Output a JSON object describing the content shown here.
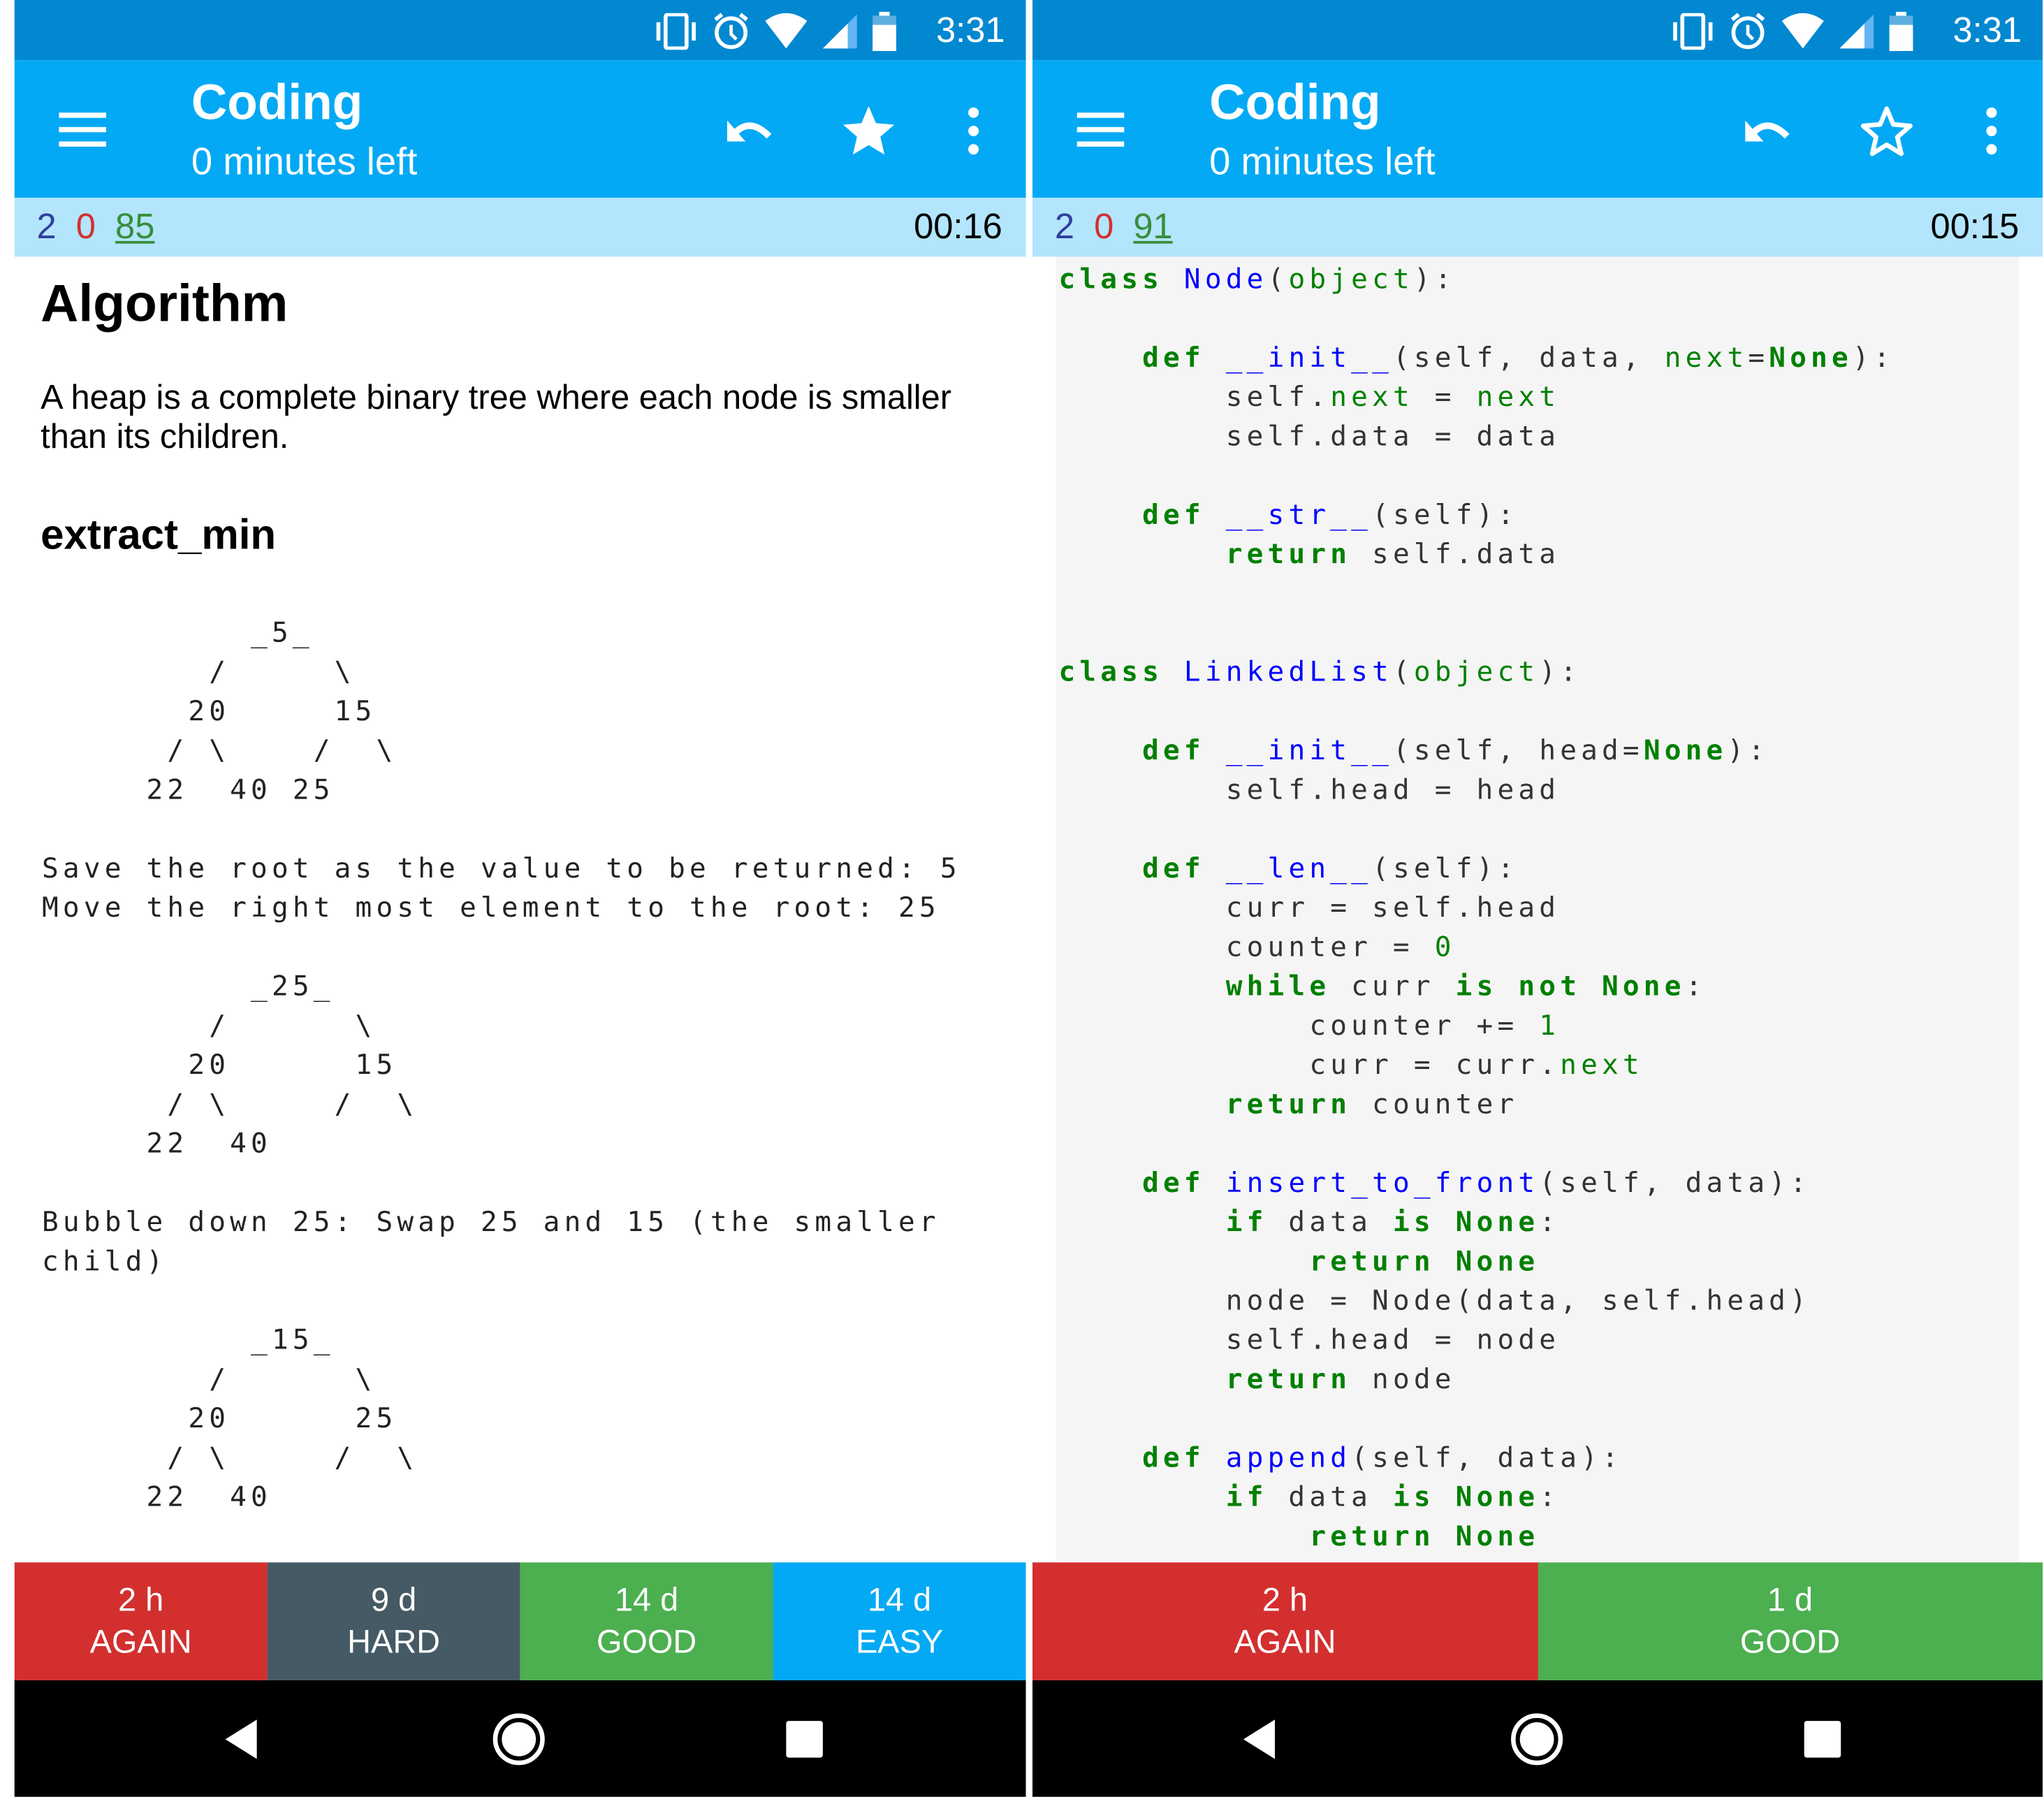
{
  "status_bar": {
    "time": "3:31",
    "icons": [
      "vibrate-icon",
      "alarm-icon",
      "wifi-icon",
      "signal-icon",
      "battery-icon"
    ]
  },
  "colors": {
    "status_bar": "#0288d1",
    "toolbar": "#03a9f4",
    "info_bar": "#b3e5fc",
    "again": "#d32f2f",
    "hard": "#455a64",
    "good": "#4caf50",
    "easy": "#03a9f4",
    "keyword": "#008000",
    "function": "#0000ff"
  },
  "left": {
    "toolbar": {
      "title": "Coding",
      "subtitle": "0 minutes left",
      "icons": [
        "menu-icon",
        "undo-icon",
        "star-filled-icon",
        "more-vert-icon"
      ]
    },
    "counts": {
      "new": "2",
      "learning": "0",
      "review": "85",
      "timer": "00:16"
    },
    "card": {
      "heading": "Algorithm",
      "paragraph": "A heap is a complete binary tree where each node is smaller than its children.",
      "subheading": "extract_min",
      "preformatted": "          _5_\n        /     \\\n       20     15\n      / \\    /  \\\n     22  40 25\n\nSave the root as the value to be returned: 5\nMove the right most element to the root: 25\n\n          _25_\n        /      \\\n       20      15\n      / \\     /  \\\n     22  40\n\nBubble down 25: Swap 25 and 15 (the smaller\nchild)\n\n          _15_\n        /      \\\n       20      25\n      / \\     /  \\\n     22  40"
    },
    "answers": [
      {
        "interval": "2 h",
        "label": "AGAIN"
      },
      {
        "interval": "9 d",
        "label": "HARD"
      },
      {
        "interval": "14 d",
        "label": "GOOD"
      },
      {
        "interval": "14 d",
        "label": "EASY"
      }
    ]
  },
  "right": {
    "toolbar": {
      "title": "Coding",
      "subtitle": "0 minutes left",
      "icons": [
        "menu-icon",
        "undo-icon",
        "star-outline-icon",
        "more-vert-icon"
      ]
    },
    "counts": {
      "new": "2",
      "learning": "0",
      "review": "91",
      "timer": "00:15"
    },
    "code_lines": [
      [
        [
          "class",
          "k"
        ],
        [
          " ",
          "p"
        ],
        [
          "Node",
          "f"
        ],
        [
          "(",
          "p"
        ],
        [
          "object",
          "g"
        ],
        [
          "):",
          "p"
        ]
      ],
      [],
      [
        [
          "    ",
          "p"
        ],
        [
          "def",
          "k"
        ],
        [
          " ",
          "p"
        ],
        [
          "__init__",
          "f"
        ],
        [
          "(self, data, ",
          "p"
        ],
        [
          "next",
          "g"
        ],
        [
          "=",
          "p"
        ],
        [
          "None",
          "k"
        ],
        [
          "):",
          "p"
        ]
      ],
      [
        [
          "        self.",
          "p"
        ],
        [
          "next",
          "g"
        ],
        [
          " = ",
          "p"
        ],
        [
          "next",
          "g"
        ]
      ],
      [
        [
          "        self.data = data",
          "p"
        ]
      ],
      [],
      [
        [
          "    ",
          "p"
        ],
        [
          "def",
          "k"
        ],
        [
          " ",
          "p"
        ],
        [
          "__str__",
          "f"
        ],
        [
          "(self):",
          "p"
        ]
      ],
      [
        [
          "        ",
          "p"
        ],
        [
          "return",
          "k"
        ],
        [
          " self.data",
          "p"
        ]
      ],
      [],
      [],
      [
        [
          "class",
          "k"
        ],
        [
          " ",
          "p"
        ],
        [
          "LinkedList",
          "f"
        ],
        [
          "(",
          "p"
        ],
        [
          "object",
          "g"
        ],
        [
          "):",
          "p"
        ]
      ],
      [],
      [
        [
          "    ",
          "p"
        ],
        [
          "def",
          "k"
        ],
        [
          " ",
          "p"
        ],
        [
          "__init__",
          "f"
        ],
        [
          "(self, head=",
          "p"
        ],
        [
          "None",
          "k"
        ],
        [
          "):",
          "p"
        ]
      ],
      [
        [
          "        self.head = head",
          "p"
        ]
      ],
      [],
      [
        [
          "    ",
          "p"
        ],
        [
          "def",
          "k"
        ],
        [
          " ",
          "p"
        ],
        [
          "__len__",
          "f"
        ],
        [
          "(self):",
          "p"
        ]
      ],
      [
        [
          "        curr = self.head",
          "p"
        ]
      ],
      [
        [
          "        counter = ",
          "p"
        ],
        [
          "0",
          "g"
        ]
      ],
      [
        [
          "        ",
          "p"
        ],
        [
          "while",
          "k"
        ],
        [
          " curr ",
          "p"
        ],
        [
          "is not None",
          "k"
        ],
        [
          ":",
          "p"
        ]
      ],
      [
        [
          "            counter += ",
          "p"
        ],
        [
          "1",
          "g"
        ]
      ],
      [
        [
          "            curr = curr.",
          "p"
        ],
        [
          "next",
          "g"
        ]
      ],
      [
        [
          "        ",
          "p"
        ],
        [
          "return",
          "k"
        ],
        [
          " counter",
          "p"
        ]
      ],
      [],
      [
        [
          "    ",
          "p"
        ],
        [
          "def",
          "k"
        ],
        [
          " ",
          "p"
        ],
        [
          "insert_to_front",
          "f"
        ],
        [
          "(self, data):",
          "p"
        ]
      ],
      [
        [
          "        ",
          "p"
        ],
        [
          "if",
          "k"
        ],
        [
          " data ",
          "p"
        ],
        [
          "is None",
          "k"
        ],
        [
          ":",
          "p"
        ]
      ],
      [
        [
          "            ",
          "p"
        ],
        [
          "return None",
          "k"
        ]
      ],
      [
        [
          "        node = Node(data, self.head)",
          "p"
        ]
      ],
      [
        [
          "        self.head = node",
          "p"
        ]
      ],
      [
        [
          "        ",
          "p"
        ],
        [
          "return",
          "k"
        ],
        [
          " node",
          "p"
        ]
      ],
      [],
      [
        [
          "    ",
          "p"
        ],
        [
          "def",
          "k"
        ],
        [
          " ",
          "p"
        ],
        [
          "append",
          "f"
        ],
        [
          "(self, data):",
          "p"
        ]
      ],
      [
        [
          "        ",
          "p"
        ],
        [
          "if",
          "k"
        ],
        [
          " data ",
          "p"
        ],
        [
          "is None",
          "k"
        ],
        [
          ":",
          "p"
        ]
      ],
      [
        [
          "            ",
          "p"
        ],
        [
          "return None",
          "k"
        ]
      ]
    ],
    "answers": [
      {
        "interval": "2 h",
        "label": "AGAIN"
      },
      {
        "interval": "1 d",
        "label": "GOOD"
      }
    ]
  },
  "nav_bar": {
    "icons": [
      "back-icon",
      "home-icon",
      "recents-icon"
    ]
  }
}
